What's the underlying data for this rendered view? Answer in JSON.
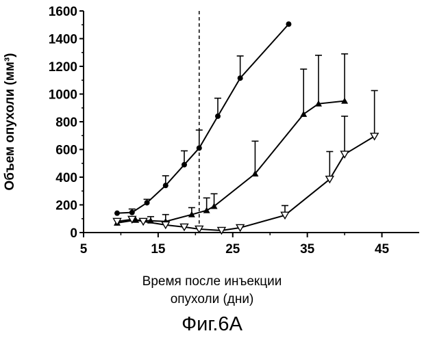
{
  "chart_data": {
    "type": "line",
    "title": "Фиг.6А",
    "ylabel": "Объем опухоли (мм³)",
    "xlabel_line1": "Время после инъекции",
    "xlabel_line2": "опухоли (дни)",
    "xlim": [
      5,
      50
    ],
    "ylim": [
      0,
      1600
    ],
    "x_ticks": [
      5,
      15,
      25,
      35,
      45
    ],
    "y_ticks": [
      0,
      200,
      400,
      600,
      800,
      1000,
      1200,
      1400,
      1600
    ],
    "vline_x": 20.5,
    "series": [
      {
        "name": "circles",
        "marker": "circle",
        "x": [
          9.5,
          11.5,
          13.5,
          16,
          18.5,
          20.5,
          23,
          26,
          32.5
        ],
        "y": [
          140,
          145,
          215,
          340,
          490,
          610,
          840,
          1115,
          1505
        ],
        "err": [
          0,
          25,
          25,
          70,
          100,
          130,
          130,
          160,
          0
        ]
      },
      {
        "name": "triangles",
        "marker": "triangle",
        "x": [
          9.5,
          12,
          14,
          16,
          19.5,
          21.5,
          22.5,
          28,
          34.5,
          36.5,
          40
        ],
        "y": [
          70,
          90,
          85,
          80,
          130,
          160,
          190,
          425,
          855,
          930,
          950
        ],
        "err": [
          0,
          0,
          30,
          50,
          50,
          90,
          90,
          235,
          325,
          350,
          340
        ]
      },
      {
        "name": "inverted triangles",
        "marker": "inverted-triangle",
        "x": [
          9.5,
          11.5,
          13,
          16,
          18.5,
          20.5,
          23.5,
          26,
          32,
          38,
          40,
          44
        ],
        "y": [
          80,
          95,
          80,
          55,
          40,
          25,
          15,
          35,
          125,
          385,
          565,
          695
        ],
        "err": [
          0,
          0,
          0,
          0,
          0,
          0,
          0,
          0,
          70,
          200,
          275,
          330
        ]
      }
    ]
  }
}
